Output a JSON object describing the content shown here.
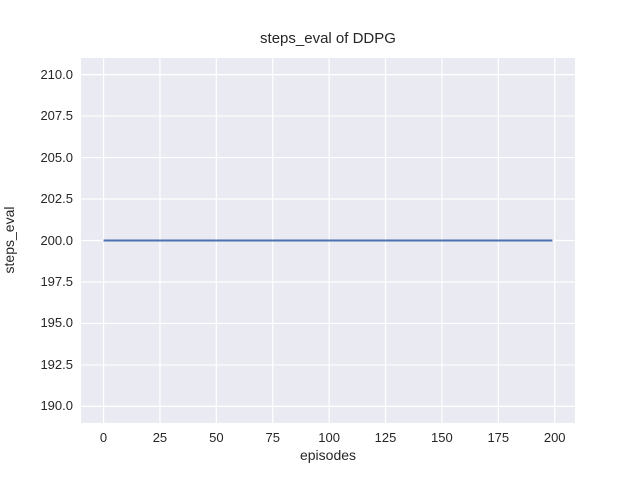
{
  "chart_data": {
    "type": "line",
    "title": "steps_eval of DDPG",
    "xlabel": "episodes",
    "ylabel": "steps_eval",
    "xlim": [
      -10,
      209
    ],
    "ylim": [
      189,
      211
    ],
    "xticks": [
      0,
      25,
      50,
      75,
      100,
      125,
      150,
      175,
      200
    ],
    "xtick_labels": [
      "0",
      "25",
      "50",
      "75",
      "100",
      "125",
      "150",
      "175",
      "200"
    ],
    "yticks": [
      190.0,
      192.5,
      195.0,
      197.5,
      200.0,
      202.5,
      205.0,
      207.5,
      210.0
    ],
    "ytick_labels": [
      "190.0",
      "192.5",
      "195.0",
      "197.5",
      "200.0",
      "202.5",
      "205.0",
      "207.5",
      "210.0"
    ],
    "grid": true,
    "legend": "none",
    "series": [
      {
        "name": "DDPG steps_eval",
        "color": "#4c72b0",
        "x": [
          0,
          199
        ],
        "y": [
          200,
          200
        ],
        "note": "constant value 200 for every evaluated episode from 0 to 199"
      }
    ],
    "colors": {
      "figure_background": "#ffffff",
      "axes_background": "#eaeaf2",
      "grid_color": "#ffffff",
      "text_color": "#262626",
      "line_color": "#4c72b0"
    }
  }
}
